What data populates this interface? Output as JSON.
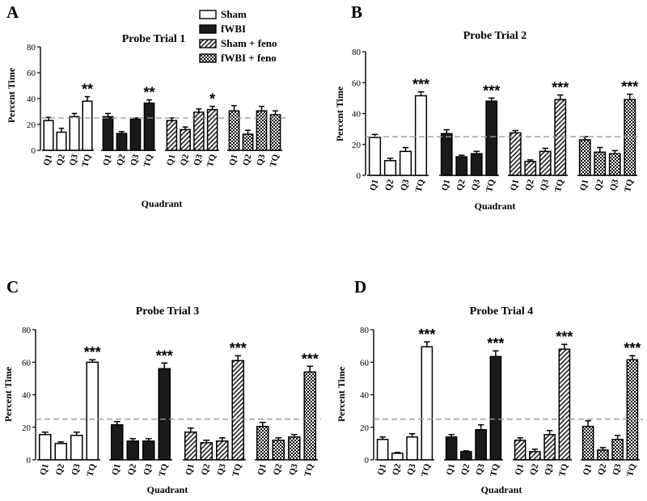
{
  "chart_data": [
    {
      "type": "bar",
      "panel": "A",
      "title": "Probe Trial 1",
      "ylabel": "Percent Time",
      "xlabel": "Quadrant",
      "ylim": [
        0,
        80
      ],
      "yticks": [
        "0",
        "20",
        "40",
        "60",
        "80"
      ],
      "reference_line": 25,
      "categories": [
        "Q1",
        "Q2",
        "Q3",
        "TQ"
      ],
      "series": [
        {
          "name": "Sham",
          "values": [
            23,
            14,
            26,
            38
          ],
          "errors": [
            2.5,
            3,
            2.5,
            3.5
          ],
          "sig": [
            "",
            "",
            "",
            "**"
          ]
        },
        {
          "name": "fWBI",
          "values": [
            26,
            13,
            24,
            36.5
          ],
          "errors": [
            2.5,
            1.5,
            1,
            2.5
          ],
          "sig": [
            "",
            "",
            "",
            "**"
          ]
        },
        {
          "name": "Sham + feno",
          "values": [
            23,
            16,
            29.5,
            31.5
          ],
          "errors": [
            2,
            2,
            2.5,
            2.5
          ],
          "sig": [
            "",
            "",
            "",
            "*"
          ]
        },
        {
          "name": "fWBI + feno",
          "values": [
            30.5,
            12.5,
            30.5,
            27.5
          ],
          "errors": [
            4,
            3,
            3.5,
            3
          ],
          "sig": [
            "",
            "",
            "",
            ""
          ]
        }
      ]
    },
    {
      "type": "bar",
      "panel": "B",
      "title": "Probe Trial 2",
      "ylabel": "Percent Time",
      "xlabel": "Quadrant",
      "ylim": [
        0,
        80
      ],
      "yticks": [
        "0",
        "20",
        "40",
        "60",
        "80"
      ],
      "reference_line": 25,
      "categories": [
        "Q1",
        "Q2",
        "Q3",
        "TQ"
      ],
      "series": [
        {
          "name": "Sham",
          "values": [
            24.5,
            9.5,
            15.5,
            51.5
          ],
          "errors": [
            2,
            1.5,
            2.5,
            2.5
          ],
          "sig": [
            "",
            "",
            "",
            "***"
          ]
        },
        {
          "name": "fWBI",
          "values": [
            27,
            12,
            14,
            48
          ],
          "errors": [
            2.5,
            1,
            1.5,
            2
          ],
          "sig": [
            "",
            "",
            "",
            "***"
          ]
        },
        {
          "name": "Sham + feno",
          "values": [
            27.5,
            9,
            15.5,
            49
          ],
          "errors": [
            1.5,
            1,
            2,
            3
          ],
          "sig": [
            "",
            "",
            "",
            "***"
          ]
        },
        {
          "name": "fWBI + feno",
          "values": [
            23,
            15,
            14,
            49
          ],
          "errors": [
            2,
            3,
            2,
            3.5
          ],
          "sig": [
            "",
            "",
            "",
            "***"
          ]
        }
      ]
    },
    {
      "type": "bar",
      "panel": "C",
      "title": "Probe Trial 3",
      "ylabel": "Percent Time",
      "xlabel": "Quadrant",
      "ylim": [
        0,
        80
      ],
      "yticks": [
        "0",
        "20",
        "40",
        "60",
        "80"
      ],
      "reference_line": 25,
      "categories": [
        "Q1",
        "Q2",
        "Q3",
        "TQ"
      ],
      "series": [
        {
          "name": "Sham",
          "values": [
            15.5,
            10,
            15,
            60
          ],
          "errors": [
            1.5,
            1,
            2,
            1.5
          ],
          "sig": [
            "",
            "",
            "",
            "***"
          ]
        },
        {
          "name": "fWBI",
          "values": [
            21.5,
            11.5,
            11.5,
            56
          ],
          "errors": [
            2,
            1.5,
            1.5,
            3.5
          ],
          "sig": [
            "",
            "",
            "",
            "***"
          ]
        },
        {
          "name": "Sham + feno",
          "values": [
            17,
            10.5,
            11.5,
            61
          ],
          "errors": [
            2.5,
            1.5,
            2,
            3
          ],
          "sig": [
            "",
            "",
            "",
            "***"
          ]
        },
        {
          "name": "fWBI + feno",
          "values": [
            20.5,
            12,
            14,
            54
          ],
          "errors": [
            2.5,
            1.5,
            1.5,
            3.5
          ],
          "sig": [
            "",
            "",
            "",
            "***"
          ]
        }
      ]
    },
    {
      "type": "bar",
      "panel": "D",
      "title": "Probe Trial 4",
      "ylabel": "Percent Time",
      "xlabel": "Quadrant",
      "ylim": [
        0,
        80
      ],
      "yticks": [
        "0",
        "20",
        "40",
        "60",
        "80"
      ],
      "reference_line": 25,
      "categories": [
        "Q1",
        "Q2",
        "Q3",
        "TQ"
      ],
      "series": [
        {
          "name": "Sham",
          "values": [
            12.5,
            4,
            14,
            69.5
          ],
          "errors": [
            1.5,
            0.5,
            2,
            3
          ],
          "sig": [
            "",
            "",
            "",
            "***"
          ]
        },
        {
          "name": "fWBI",
          "values": [
            14,
            5,
            18.5,
            63.5
          ],
          "errors": [
            1.5,
            0.5,
            3,
            3.5
          ],
          "sig": [
            "",
            "",
            "",
            "***"
          ]
        },
        {
          "name": "Sham + feno",
          "values": [
            12,
            5,
            15.5,
            68
          ],
          "errors": [
            1.5,
            1.5,
            2.5,
            3
          ],
          "sig": [
            "",
            "",
            "",
            "***"
          ]
        },
        {
          "name": "fWBI + feno",
          "values": [
            20.5,
            6,
            12.5,
            61.5
          ],
          "errors": [
            3.5,
            1.5,
            2.5,
            2.5
          ],
          "sig": [
            "",
            "",
            "",
            "***"
          ]
        }
      ]
    }
  ],
  "legend": {
    "entries": [
      "Sham",
      "fWBI",
      "Sham + feno",
      "fWBI + feno"
    ],
    "placement": "top-right of panel A"
  },
  "colors": {
    "Sham": "#ffffff",
    "fWBI": "#1a1a1a",
    "Sham + feno": "diagonal-hatch",
    "fWBI + feno": "checkerboard",
    "reference_line": "#999999"
  }
}
